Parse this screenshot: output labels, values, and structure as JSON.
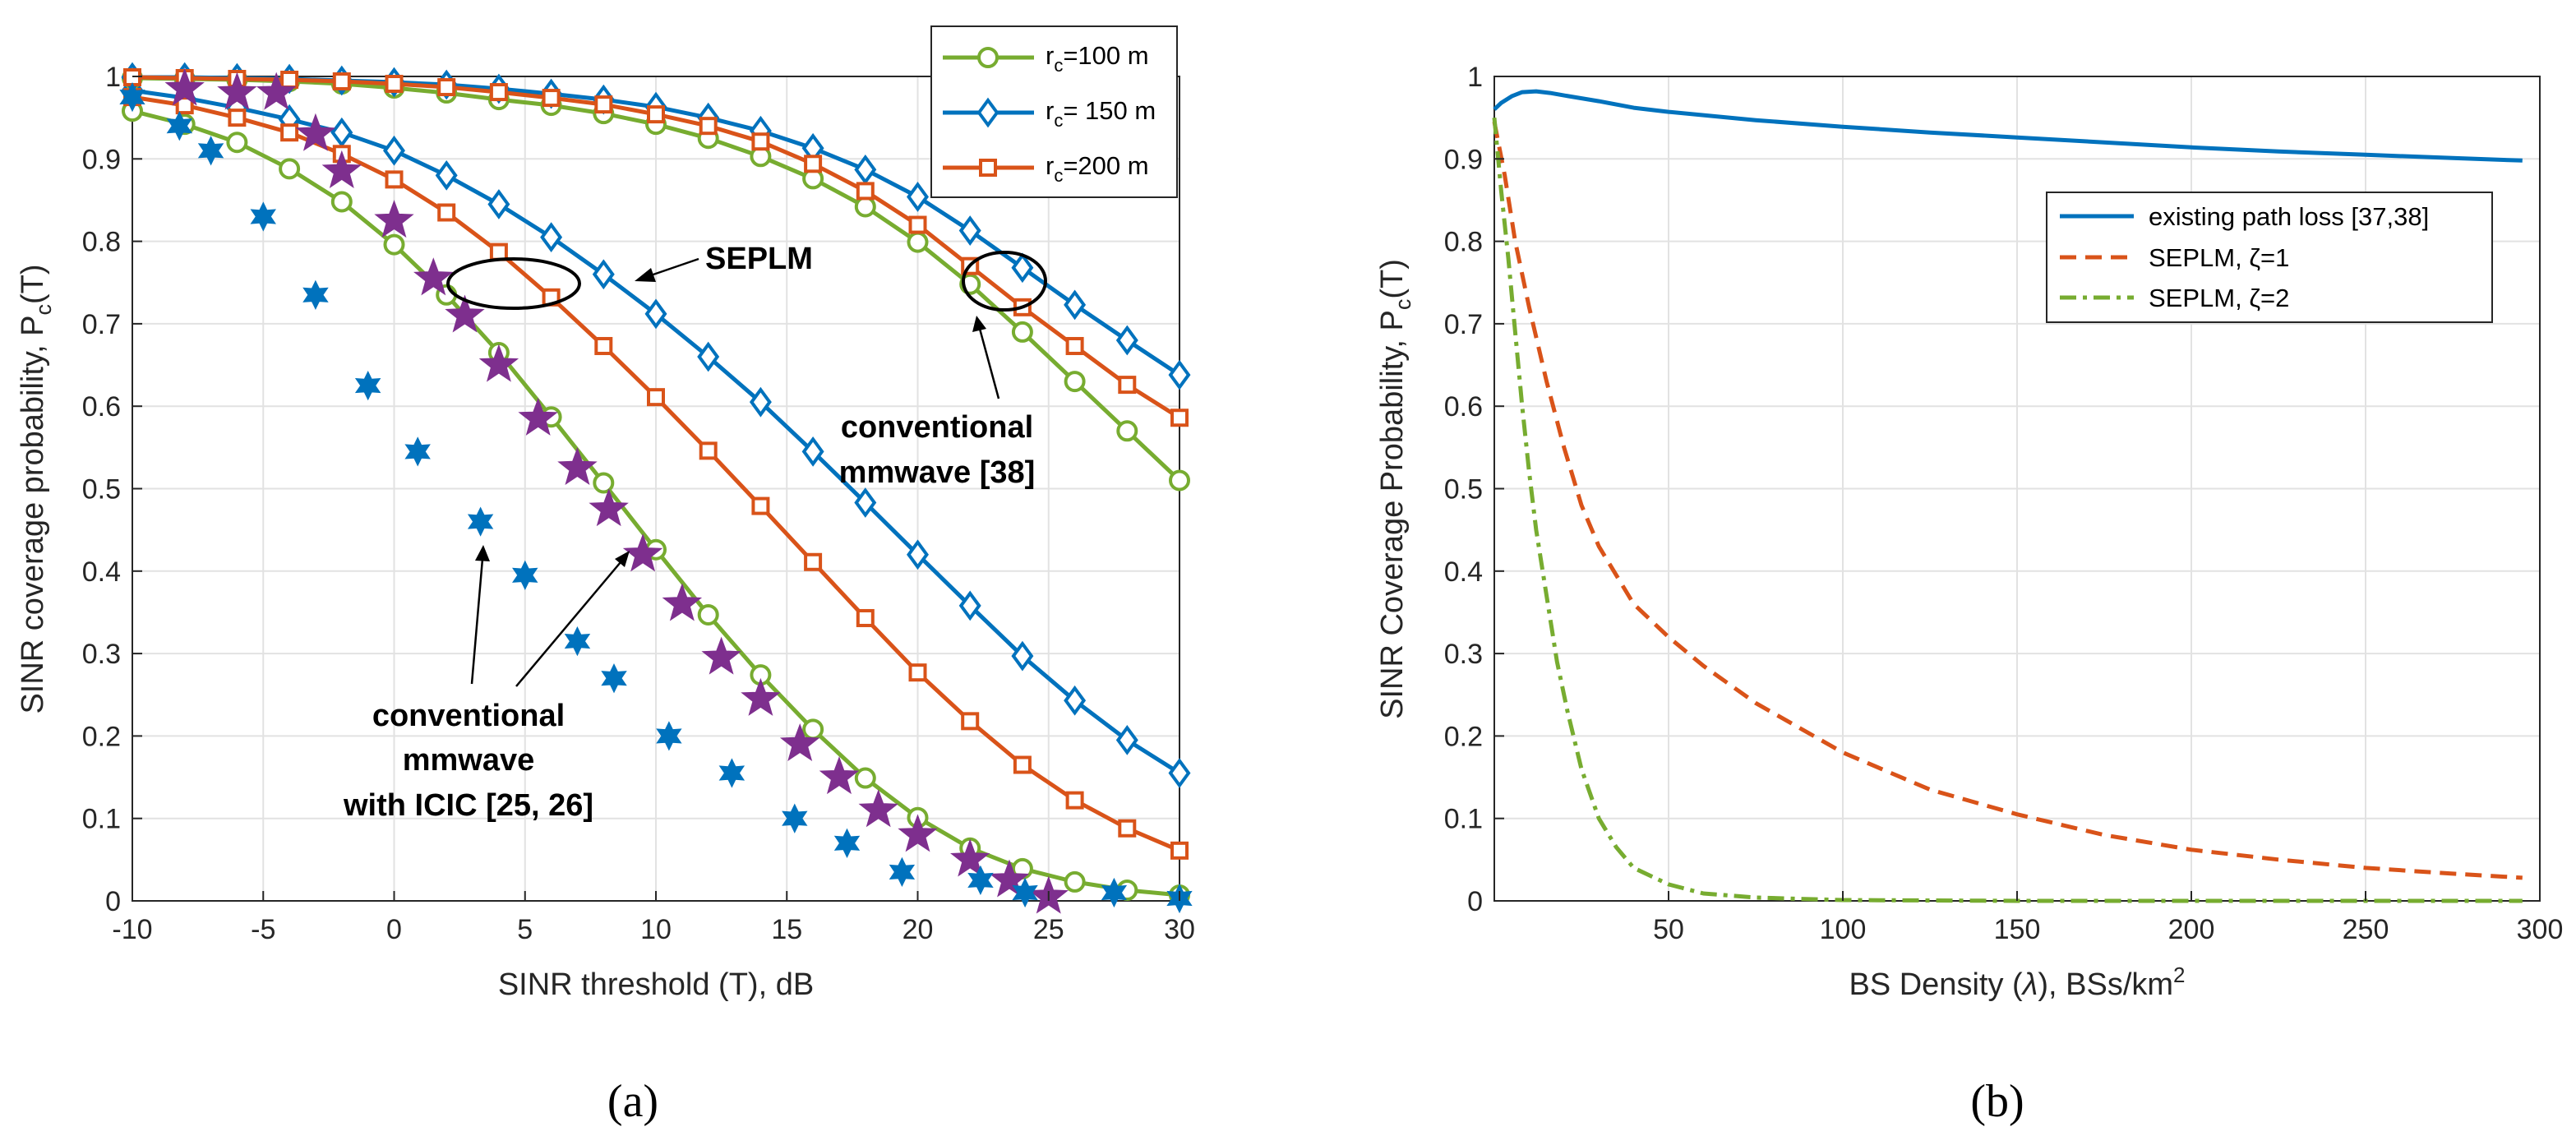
{
  "chart_data": [
    {
      "type": "line",
      "panel_label": "(a)",
      "xlabel": "SINR threshold (T), dB",
      "ylabel_main": "SINR coverage probability, P",
      "ylabel_sub": "c",
      "ylabel_end": "(T)",
      "xlim": [
        -10,
        30
      ],
      "ylim": [
        0,
        1
      ],
      "xticks": [
        "-10",
        "-5",
        "0",
        "5",
        "10",
        "15",
        "20",
        "25",
        "30"
      ],
      "yticks": [
        "0",
        "0.1",
        "0.2",
        "0.3",
        "0.4",
        "0.5",
        "0.6",
        "0.7",
        "0.8",
        "0.9",
        "1"
      ],
      "legend": [
        {
          "main": "r",
          "sub": "c",
          "rest": "=100 m",
          "color": "#77ac30",
          "marker": "circle"
        },
        {
          "main": "r",
          "sub": "c",
          "rest": "= 150 m",
          "color": "#0072bd",
          "marker": "diamond"
        },
        {
          "main": "r",
          "sub": "c",
          "rest": "=200 m",
          "color": "#d95319",
          "marker": "square"
        }
      ],
      "annotations": [
        {
          "text": "SEPLM"
        },
        {
          "text": "conventional"
        },
        {
          "text": "mmwave [38]"
        },
        {
          "text": "conventional"
        },
        {
          "text": "mmwave"
        },
        {
          "text": "with ICIC [25, 26]"
        }
      ],
      "series": [
        {
          "name": "SEPLM rc=100 m",
          "color": "#77ac30",
          "marker": "circle",
          "x": [
            -10,
            -8,
            -6,
            -4,
            -2,
            0,
            2,
            4,
            6,
            8,
            10,
            12,
            14,
            16,
            18,
            20,
            22,
            24,
            26,
            28,
            30
          ],
          "y": [
            0.958,
            0.942,
            0.92,
            0.888,
            0.848,
            0.796,
            0.735,
            0.665,
            0.587,
            0.507,
            0.426,
            0.347,
            0.274,
            0.208,
            0.149,
            0.101,
            0.064,
            0.039,
            0.023,
            0.013,
            0.007
          ]
        },
        {
          "name": "SEPLM rc=150 m",
          "color": "#0072bd",
          "marker": "diamond",
          "x": [
            -10,
            -8,
            -6,
            -4,
            -2,
            0,
            2,
            4,
            6,
            8,
            10,
            12,
            14,
            16,
            18,
            20,
            22,
            24,
            26,
            28,
            30
          ],
          "y": [
            0.983,
            0.974,
            0.962,
            0.948,
            0.932,
            0.91,
            0.88,
            0.845,
            0.805,
            0.76,
            0.712,
            0.66,
            0.605,
            0.545,
            0.483,
            0.42,
            0.358,
            0.297,
            0.243,
            0.195,
            0.155
          ]
        },
        {
          "name": "SEPLM rc=200 m",
          "color": "#d95319",
          "marker": "square",
          "x": [
            -10,
            -8,
            -6,
            -4,
            -2,
            0,
            2,
            4,
            6,
            8,
            10,
            12,
            14,
            16,
            18,
            20,
            22,
            24,
            26,
            28,
            30
          ],
          "y": [
            0.975,
            0.965,
            0.95,
            0.932,
            0.906,
            0.875,
            0.835,
            0.787,
            0.732,
            0.673,
            0.611,
            0.546,
            0.479,
            0.411,
            0.343,
            0.277,
            0.218,
            0.165,
            0.122,
            0.088,
            0.061
          ]
        },
        {
          "name": "conventional rc=100 m",
          "color": "#77ac30",
          "marker": "circle",
          "x": [
            -10,
            -8,
            -6,
            -4,
            -2,
            0,
            2,
            4,
            6,
            8,
            10,
            12,
            14,
            16,
            18,
            20,
            22,
            24,
            26,
            28,
            30
          ],
          "y": [
            0.998,
            0.997,
            0.996,
            0.994,
            0.991,
            0.986,
            0.98,
            0.972,
            0.965,
            0.955,
            0.942,
            0.925,
            0.903,
            0.876,
            0.842,
            0.799,
            0.748,
            0.69,
            0.63,
            0.57,
            0.51
          ]
        },
        {
          "name": "conventional rc=150 m",
          "color": "#0072bd",
          "marker": "diamond",
          "x": [
            -10,
            -8,
            -6,
            -4,
            -2,
            0,
            2,
            4,
            6,
            8,
            10,
            12,
            14,
            16,
            18,
            20,
            22,
            24,
            26,
            28,
            30
          ],
          "y": [
            0.999,
            0.999,
            0.998,
            0.997,
            0.995,
            0.993,
            0.99,
            0.985,
            0.979,
            0.972,
            0.963,
            0.95,
            0.934,
            0.913,
            0.887,
            0.854,
            0.813,
            0.768,
            0.723,
            0.68,
            0.638
          ]
        },
        {
          "name": "conventional rc=200 m",
          "color": "#d95319",
          "marker": "square",
          "x": [
            -10,
            -8,
            -6,
            -4,
            -2,
            0,
            2,
            4,
            6,
            8,
            10,
            12,
            14,
            16,
            18,
            20,
            22,
            24,
            26,
            28,
            30
          ],
          "y": [
            0.999,
            0.998,
            0.997,
            0.996,
            0.994,
            0.991,
            0.987,
            0.981,
            0.974,
            0.966,
            0.954,
            0.94,
            0.921,
            0.894,
            0.861,
            0.82,
            0.77,
            0.72,
            0.673,
            0.626,
            0.586
          ]
        },
        {
          "name": "conventional mmwave with ICIC (purple)",
          "color": "#7e2f8e",
          "marker": "star5",
          "line": false,
          "x": [
            -8,
            -6,
            -4.5,
            -3,
            -2,
            0,
            1.5,
            2.7,
            4,
            5.5,
            7,
            8.2,
            9.5,
            11,
            12.5,
            14,
            15.5,
            17,
            18.5,
            20,
            22,
            23.5,
            25
          ],
          "y": [
            0.985,
            0.98,
            0.98,
            0.93,
            0.885,
            0.825,
            0.755,
            0.71,
            0.65,
            0.585,
            0.525,
            0.475,
            0.42,
            0.36,
            0.295,
            0.245,
            0.19,
            0.15,
            0.11,
            0.08,
            0.05,
            0.025,
            0.005
          ]
        },
        {
          "name": "conventional mmwave with ICIC (blue)",
          "color": "#0072bd",
          "marker": "hexagram",
          "line": false,
          "x": [
            -10,
            -8.2,
            -7,
            -5,
            -3,
            -1,
            0.9,
            3.3,
            5,
            7,
            8.4,
            10.5,
            12.9,
            15.3,
            17.3,
            19.4,
            22.4,
            24.1,
            27.5,
            30
          ],
          "y": [
            0.975,
            0.94,
            0.91,
            0.83,
            0.735,
            0.625,
            0.545,
            0.46,
            0.395,
            0.315,
            0.27,
            0.2,
            0.155,
            0.1,
            0.07,
            0.035,
            0.025,
            0.01,
            0.01,
            0.003
          ]
        }
      ]
    },
    {
      "type": "line",
      "panel_label": "(b)",
      "xlabel_main": "BS Density (",
      "xlabel_lambda": "λ",
      "xlabel_rest": "), BSs/km",
      "xlabel_sup": "2",
      "ylabel_main": "SINR Coverage Probability, P",
      "ylabel_sub": "c",
      "ylabel_end": "(T)",
      "xlim": [
        0,
        300
      ],
      "ylim": [
        0,
        1
      ],
      "xticks": [
        "50",
        "100",
        "150",
        "200",
        "250",
        "300"
      ],
      "yticks": [
        "0",
        "0.1",
        "0.2",
        "0.3",
        "0.4",
        "0.5",
        "0.6",
        "0.7",
        "0.8",
        "0.9",
        "1"
      ],
      "legend": [
        {
          "text": "existing path loss [37,38]",
          "color": "#0072bd",
          "style": "solid"
        },
        {
          "text": "SEPLM, ζ=1",
          "color": "#d95319",
          "style": "dashed"
        },
        {
          "text": "SEPLM, ζ=2",
          "color": "#77ac30",
          "style": "dashdot"
        }
      ],
      "series": [
        {
          "name": "existing path loss [37,38]",
          "color": "#0072bd",
          "style": "solid",
          "x": [
            0,
            2,
            5,
            8,
            12,
            16,
            20,
            30,
            40,
            50,
            75,
            100,
            125,
            150,
            175,
            200,
            225,
            250,
            275,
            295
          ],
          "y": [
            0.96,
            0.968,
            0.976,
            0.981,
            0.982,
            0.98,
            0.977,
            0.97,
            0.962,
            0.957,
            0.947,
            0.939,
            0.932,
            0.926,
            0.92,
            0.914,
            0.909,
            0.905,
            0.901,
            0.898
          ]
        },
        {
          "name": "SEPLM, ζ=1",
          "color": "#d95319",
          "style": "dashed",
          "x": [
            0,
            3,
            6,
            10,
            15,
            20,
            25,
            30,
            40,
            50,
            60,
            75,
            100,
            125,
            150,
            175,
            200,
            225,
            250,
            275,
            295
          ],
          "y": [
            0.945,
            0.88,
            0.8,
            0.72,
            0.63,
            0.55,
            0.48,
            0.43,
            0.36,
            0.32,
            0.285,
            0.24,
            0.18,
            0.135,
            0.105,
            0.08,
            0.062,
            0.05,
            0.04,
            0.033,
            0.028
          ]
        },
        {
          "name": "SEPLM, ζ=2",
          "color": "#77ac30",
          "style": "dashdot",
          "x": [
            0,
            2,
            4,
            6,
            8,
            10,
            12,
            15,
            18,
            21,
            25,
            30,
            35,
            40,
            50,
            60,
            75,
            100,
            150,
            200,
            250,
            295
          ],
          "y": [
            0.95,
            0.86,
            0.78,
            0.69,
            0.6,
            0.52,
            0.45,
            0.37,
            0.29,
            0.23,
            0.16,
            0.1,
            0.065,
            0.04,
            0.02,
            0.009,
            0.004,
            0.001,
            0,
            0,
            0,
            0
          ]
        }
      ]
    }
  ]
}
